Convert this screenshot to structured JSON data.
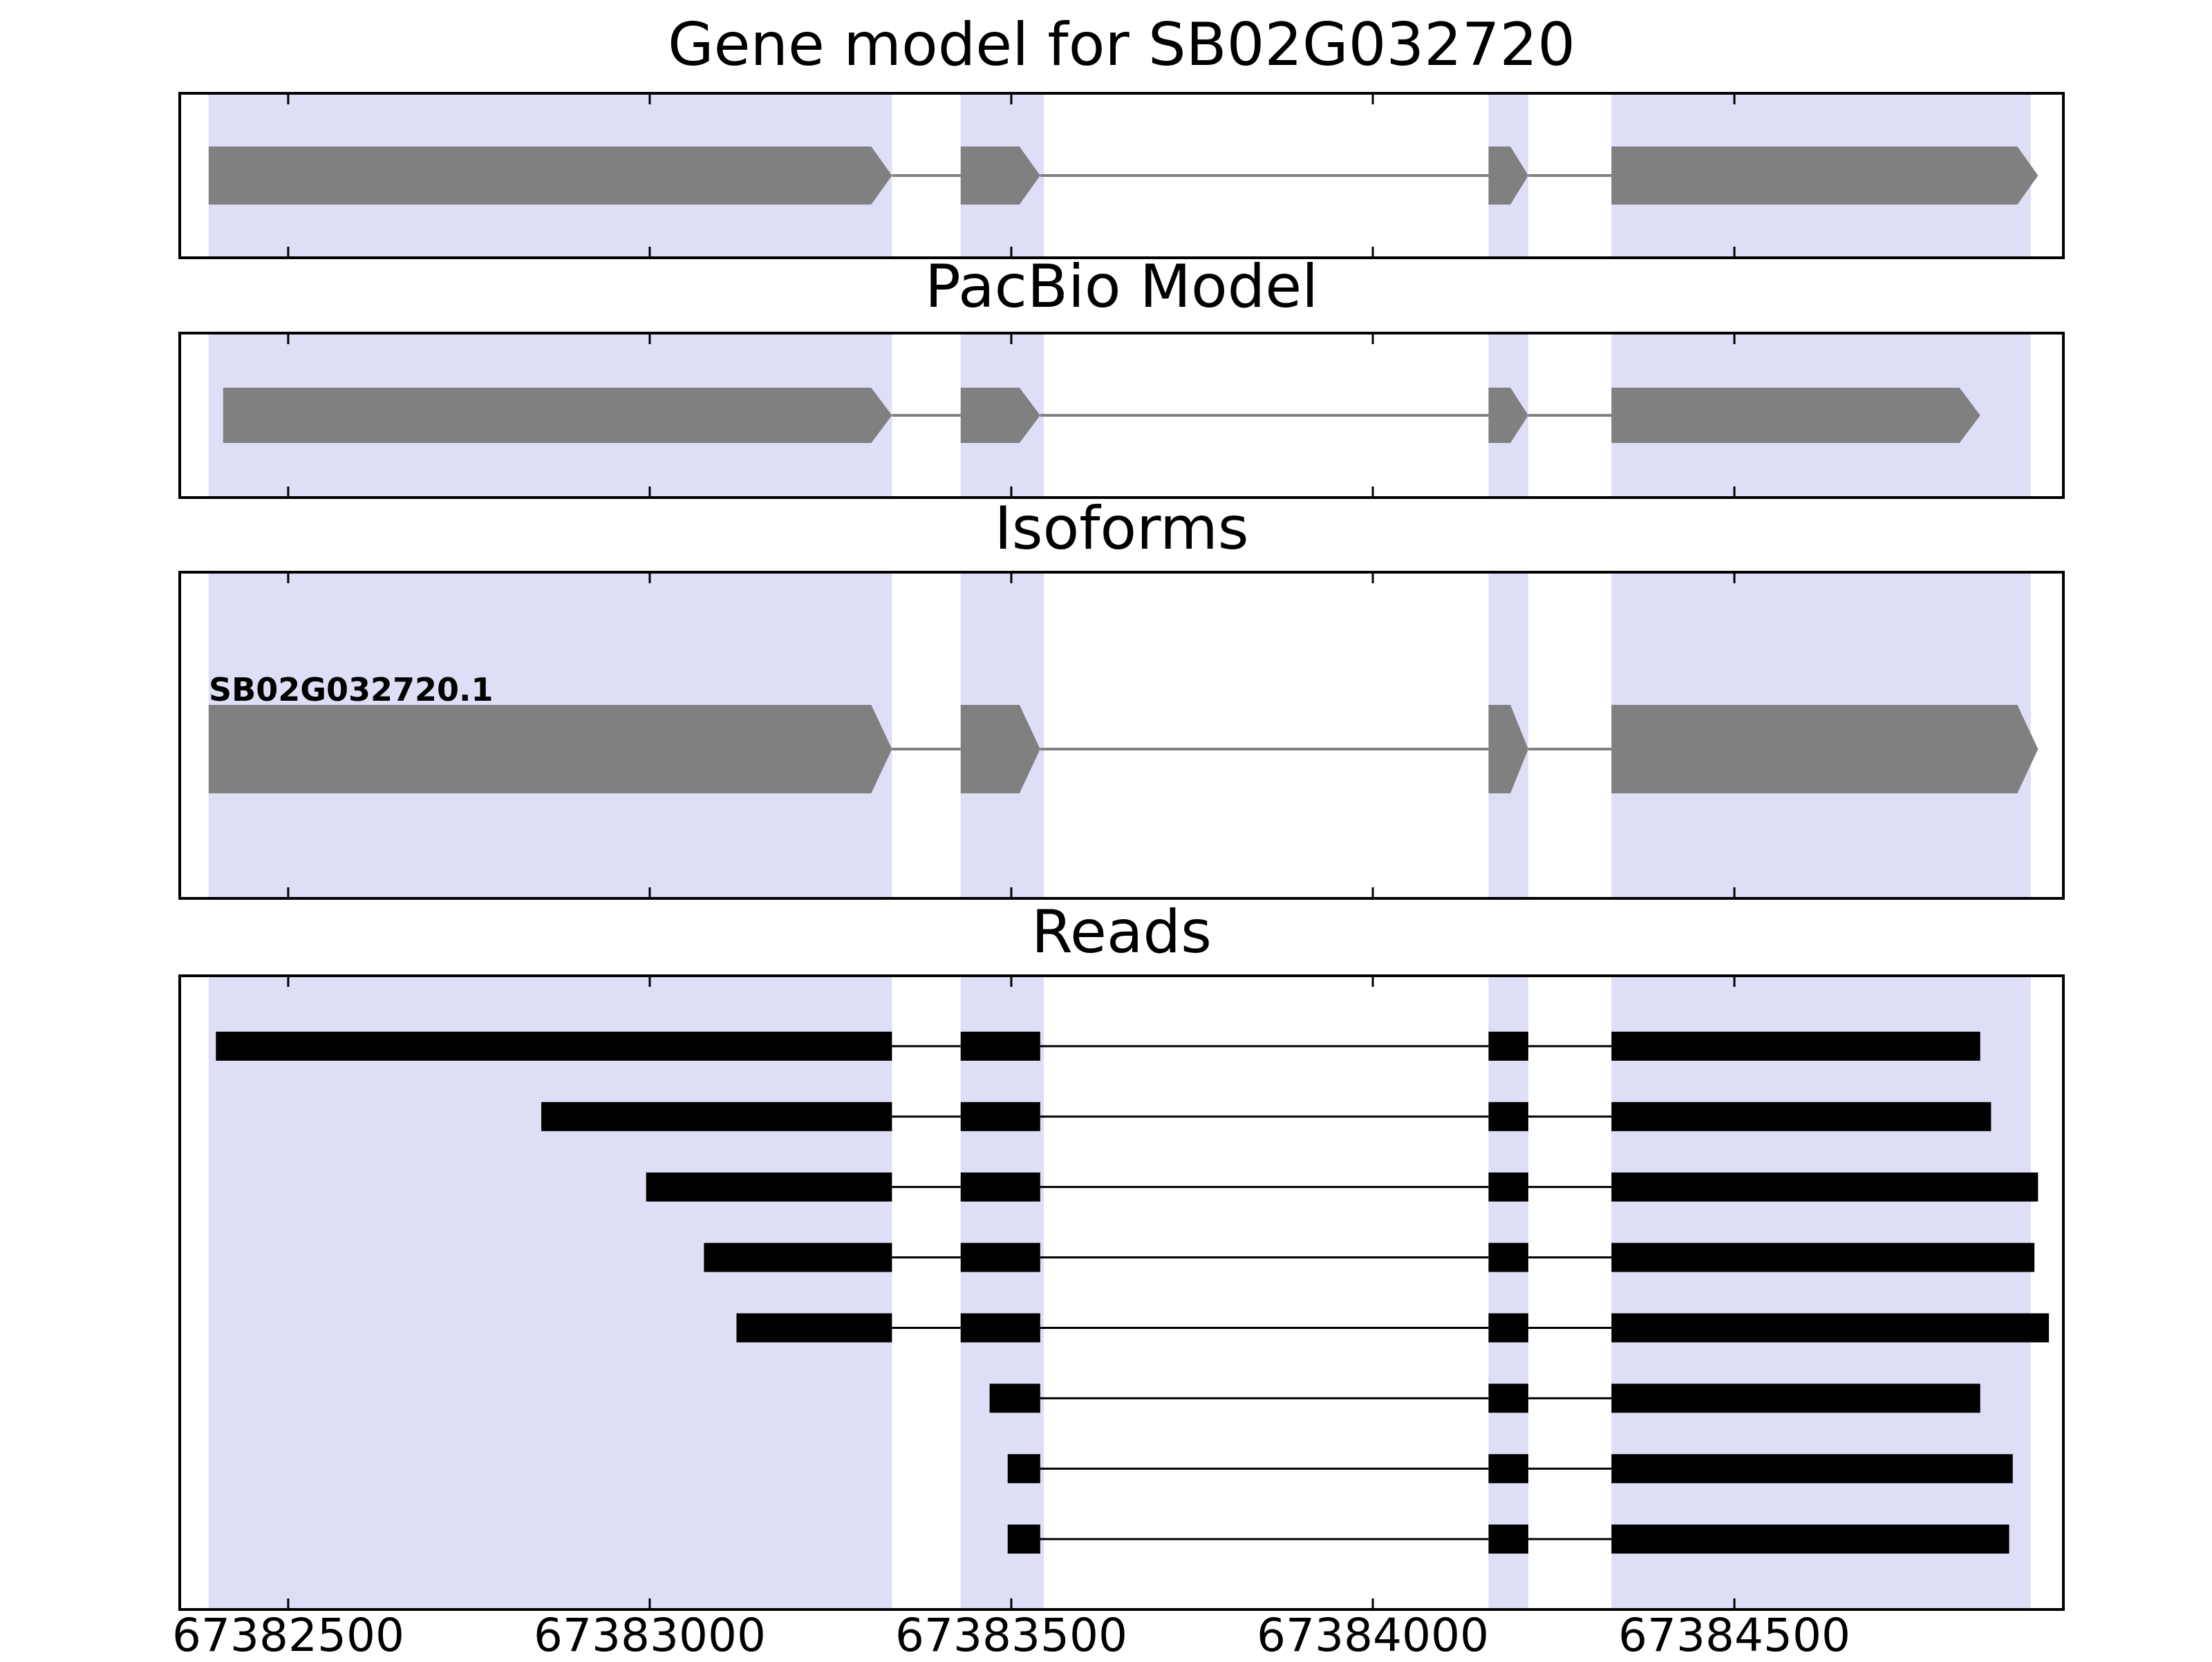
{
  "colors": {
    "background": "#ffffff",
    "exon_highlight_band": "#dedef6",
    "gene_model_fill": "#808080",
    "read_fill": "#000000",
    "axis_line": "#000000"
  },
  "chart_data": {
    "type": "genomic-track",
    "title": "Gene model for SB02G032720",
    "axis": {
      "xmin": 67382350,
      "xmax": 67384955,
      "ticks": [
        67382500,
        67383000,
        67383500,
        67384000,
        67384500
      ],
      "tick_labels": [
        "67382500",
        "67383000",
        "67383500",
        "67384000",
        "67384500"
      ]
    },
    "highlight_bands": [
      [
        67382390,
        67383335
      ],
      [
        67383430,
        67383545
      ],
      [
        67384160,
        67384215
      ],
      [
        67384330,
        67384910
      ]
    ],
    "panels": [
      {
        "title": "Gene model for SB02G032720",
        "type": "gene",
        "strand": "+",
        "features": [
          {
            "label": "",
            "exons": [
              [
                67382390,
                67383335
              ],
              [
                67383430,
                67383540
              ],
              [
                67384160,
                67384215
              ],
              [
                67384330,
                67384920
              ]
            ]
          }
        ]
      },
      {
        "title": "PacBio Model",
        "type": "gene",
        "strand": "+",
        "features": [
          {
            "label": "",
            "exons": [
              [
                67382410,
                67383335
              ],
              [
                67383430,
                67383540
              ],
              [
                67384160,
                67384215
              ],
              [
                67384330,
                67384840
              ]
            ]
          }
        ]
      },
      {
        "title": "Isoforms",
        "type": "gene",
        "strand": "+",
        "features": [
          {
            "label": "SB02G032720.1",
            "exons": [
              [
                67382390,
                67383335
              ],
              [
                67383430,
                67383540
              ],
              [
                67384160,
                67384215
              ],
              [
                67384330,
                67384920
              ]
            ]
          }
        ]
      },
      {
        "title": "Reads",
        "type": "reads",
        "reads": [
          {
            "exons": [
              [
                67382400,
                67383335
              ],
              [
                67383430,
                67383540
              ],
              [
                67384160,
                67384215
              ],
              [
                67384330,
                67384840
              ]
            ]
          },
          {
            "exons": [
              [
                67382850,
                67383335
              ],
              [
                67383430,
                67383540
              ],
              [
                67384160,
                67384215
              ],
              [
                67384330,
                67384855
              ]
            ]
          },
          {
            "exons": [
              [
                67382995,
                67383335
              ],
              [
                67383430,
                67383540
              ],
              [
                67384160,
                67384215
              ],
              [
                67384330,
                67384920
              ]
            ]
          },
          {
            "exons": [
              [
                67383075,
                67383335
              ],
              [
                67383430,
                67383540
              ],
              [
                67384160,
                67384215
              ],
              [
                67384330,
                67384915
              ]
            ]
          },
          {
            "exons": [
              [
                67383120,
                67383335
              ],
              [
                67383430,
                67383540
              ],
              [
                67384160,
                67384215
              ],
              [
                67384330,
                67384935
              ]
            ]
          },
          {
            "exons": [
              [
                67383470,
                67383540
              ],
              [
                67384160,
                67384215
              ],
              [
                67384330,
                67384840
              ]
            ]
          },
          {
            "exons": [
              [
                67383495,
                67383540
              ],
              [
                67384160,
                67384215
              ],
              [
                67384330,
                67384885
              ]
            ]
          },
          {
            "exons": [
              [
                67383495,
                67383540
              ],
              [
                67384160,
                67384215
              ],
              [
                67384330,
                67384880
              ]
            ]
          }
        ]
      }
    ]
  }
}
